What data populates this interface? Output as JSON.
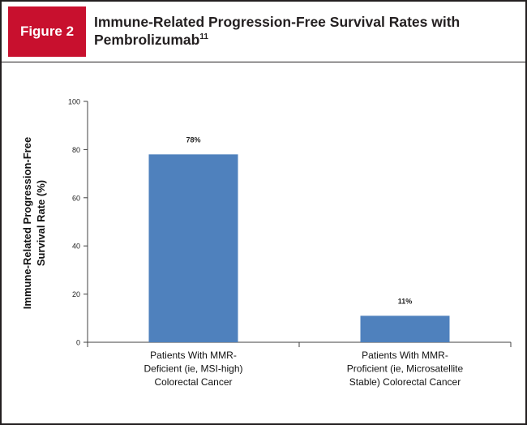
{
  "figure": {
    "label": "Figure 2",
    "title": "Immune-Related Progression-Free Survival Rates with Pembrolizumab",
    "title_superscript": "11"
  },
  "colors": {
    "bar": "#4f81bd",
    "accent": "#c8102e",
    "border": "#231f20"
  },
  "chart_data": {
    "type": "bar",
    "title": "",
    "ylabel": "Immune-Related Progression-Free Survival Rate (%)",
    "xlabel": "",
    "ylim": [
      0,
      100
    ],
    "yticks": [
      0,
      20,
      40,
      60,
      80,
      100
    ],
    "categories": [
      "Patients With MMR-Deficient (ie, MSI-high) Colorectal Cancer",
      "Patients With MMR-Proficient (ie, Microsatellite Stable) Colorectal Cancer"
    ],
    "category_lines": [
      [
        "Patients With MMR-",
        "Deficient (ie, MSI-high)",
        "Colorectal Cancer"
      ],
      [
        "Patients With MMR-",
        "Proficient (ie, Microsatellite",
        "Stable) Colorectal Cancer"
      ]
    ],
    "ylabel_lines": [
      "Immune-Related Progression-Free",
      "Survival Rate (%)"
    ],
    "values": [
      78,
      11
    ],
    "data_labels": [
      "78%",
      "11%"
    ],
    "grid": false,
    "legend": "none"
  }
}
